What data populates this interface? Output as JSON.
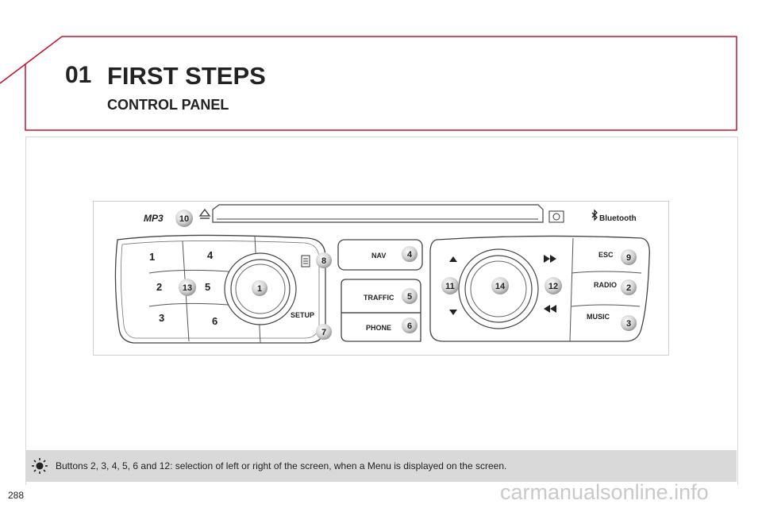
{
  "header": {
    "chapter_number": "01",
    "chapter_title": "FIRST STEPS",
    "section_title": "CONTROL PANEL",
    "accent_color": "#c8102e"
  },
  "figure": {
    "labels": {
      "mp3": "MP3",
      "bluetooth": "Bluetooth",
      "nav": "NAV",
      "traffic": "TRAFFIC",
      "phone": "PHONE",
      "setup": "SETUP",
      "esc": "ESC",
      "radio": "RADIO",
      "music": "MUSIC",
      "preset1": "1",
      "preset2": "2",
      "preset3": "3",
      "preset4": "4",
      "preset5": "5",
      "preset6": "6"
    },
    "callouts": {
      "c1": "1",
      "c2": "2",
      "c3": "3",
      "c4": "4",
      "c5": "5",
      "c6": "6",
      "c7": "7",
      "c8": "8",
      "c9": "9",
      "c10": "10",
      "c11": "11",
      "c12": "12",
      "c13": "13",
      "c14": "14"
    }
  },
  "note": {
    "icon": "sun-icon",
    "text": "Buttons 2, 3, 4, 5, 6 and 12: selection of left or right of the screen, when a Menu is displayed on the screen."
  },
  "footer": {
    "page_number": "288",
    "watermark": "carmanualsonline.info"
  }
}
